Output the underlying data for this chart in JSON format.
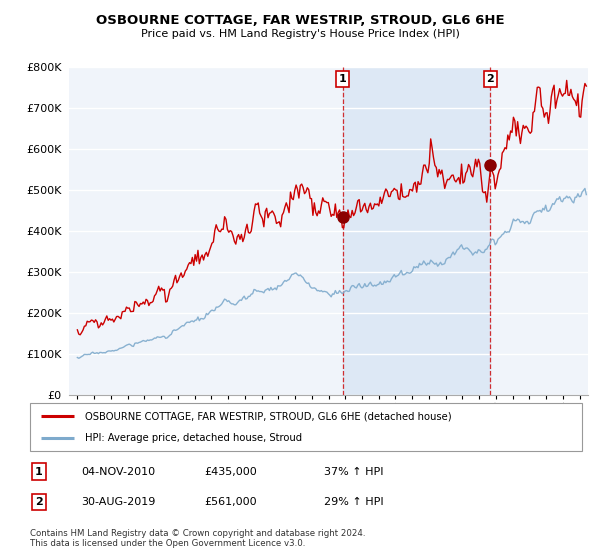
{
  "title1": "OSBOURNE COTTAGE, FAR WESTRIP, STROUD, GL6 6HE",
  "title2": "Price paid vs. HM Land Registry's House Price Index (HPI)",
  "legend_line1": "OSBOURNE COTTAGE, FAR WESTRIP, STROUD, GL6 6HE (detached house)",
  "legend_line2": "HPI: Average price, detached house, Stroud",
  "table_rows": [
    {
      "num": "1",
      "date": "04-NOV-2010",
      "price": "£435,000",
      "hpi": "37% ↑ HPI"
    },
    {
      "num": "2",
      "date": "30-AUG-2019",
      "price": "£561,000",
      "hpi": "29% ↑ HPI"
    }
  ],
  "footnote1": "Contains HM Land Registry data © Crown copyright and database right 2024.",
  "footnote2": "This data is licensed under the Open Government Licence v3.0.",
  "red_color": "#cc0000",
  "blue_color": "#7eaacc",
  "span_color": "#dde8f5",
  "purchase1_x": 2010.84,
  "purchase1_y": 435000,
  "purchase2_x": 2019.66,
  "purchase2_y": 561000,
  "ylim": [
    0,
    800000
  ],
  "xlim": [
    1994.5,
    2025.5
  ]
}
